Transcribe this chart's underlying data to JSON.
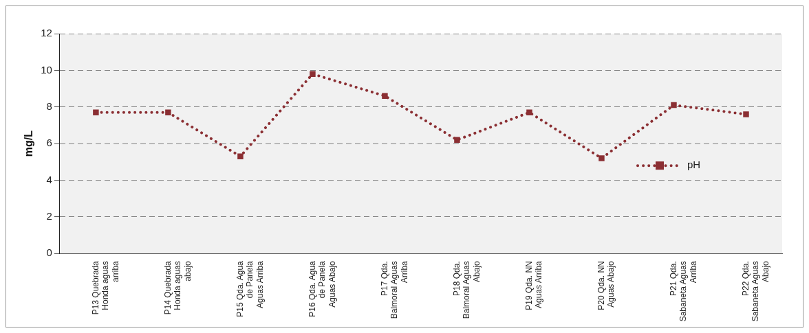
{
  "chart_data": {
    "type": "line",
    "ylabel": "mg/L",
    "categories": [
      "P13 Quebrada Honda aguas arriba",
      "P14 Quebrada Honda aguas abajo",
      "P15 Qda. Agua de Panela Aguas Arriba",
      "P16 Qda. Agua de Panela Aguas Abajo",
      "P17 Qda. Balmoral Aguas Arriba",
      "P18 Qda. Balmoral Aguas Abajo",
      "P19 Qda. NN Aguas Arriba",
      "P20 Qda. NN Aguas Abajo",
      "P21 Qda. Sabaneta Aguas Arriba",
      "P22 Qda. Sabaneta Aguas Abajo"
    ],
    "series": [
      {
        "name": "pH",
        "color": "#8b2f33",
        "values": [
          7.7,
          7.7,
          5.3,
          9.8,
          8.6,
          6.2,
          7.7,
          5.2,
          8.1,
          7.6
        ]
      }
    ],
    "ylim": [
      0,
      12
    ],
    "yticks": [
      0,
      2,
      4,
      6,
      8,
      10,
      12
    ],
    "grid": "y",
    "legend": "right",
    "marker": "square",
    "line_style": "dotted"
  }
}
